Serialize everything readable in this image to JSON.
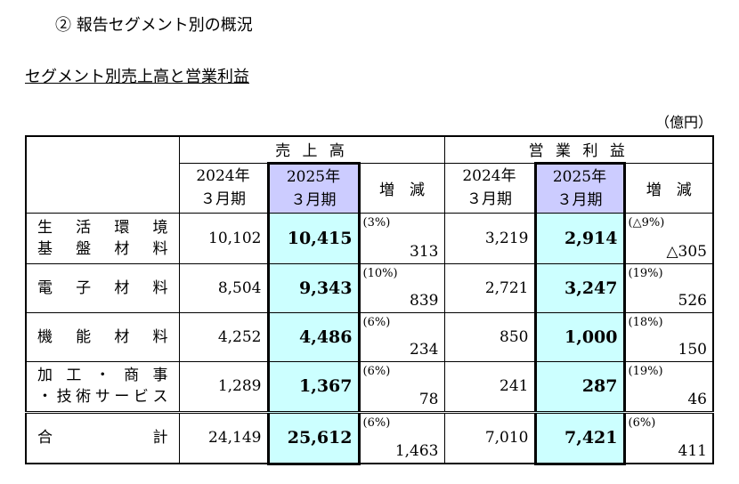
{
  "header": {
    "title": "② 報告セグメント別の概況",
    "subtitle": "セグメント別売上高と営業利益",
    "unit": "（億円）"
  },
  "table": {
    "groups": [
      "売 上 高",
      "営 業 利 益"
    ],
    "columns": [
      [
        "2024年",
        "３月期"
      ],
      [
        "2025年",
        "３月期"
      ],
      "増　減",
      [
        "2024年",
        "３月期"
      ],
      [
        "2025年",
        "３月期"
      ],
      "増　減"
    ],
    "rows": [
      {
        "name": [
          "生活環境",
          "基盤材料"
        ],
        "sales_2024": "10,102",
        "sales_2025": "10,415",
        "sales_change_pct": "(3%)",
        "sales_change": "313",
        "profit_2024": "3,219",
        "profit_2025": "2,914",
        "profit_change_pct": "(△9%)",
        "profit_change": "△305"
      },
      {
        "name": [
          "電子材料"
        ],
        "sales_2024": "8,504",
        "sales_2025": "9,343",
        "sales_change_pct": "(10%)",
        "sales_change": "839",
        "profit_2024": "2,721",
        "profit_2025": "3,247",
        "profit_change_pct": "(19%)",
        "profit_change": "526"
      },
      {
        "name": [
          "機能材料"
        ],
        "sales_2024": "4,252",
        "sales_2025": "4,486",
        "sales_change_pct": "(6%)",
        "sales_change": "234",
        "profit_2024": "850",
        "profit_2025": "1,000",
        "profit_change_pct": "(18%)",
        "profit_change": "150"
      },
      {
        "name": [
          "加工・商事",
          "・技術サービス"
        ],
        "sales_2024": "1,289",
        "sales_2025": "1,367",
        "sales_change_pct": "(6%)",
        "sales_change": "78",
        "profit_2024": "241",
        "profit_2025": "287",
        "profit_change_pct": "(19%)",
        "profit_change": "46"
      },
      {
        "name": [
          "合計"
        ],
        "sales_2024": "24,149",
        "sales_2025": "25,612",
        "sales_change_pct": "(6%)",
        "sales_change": "1,463",
        "profit_2024": "7,010",
        "profit_2025": "7,421",
        "profit_change_pct": "(6%)",
        "profit_change": "411"
      }
    ]
  }
}
